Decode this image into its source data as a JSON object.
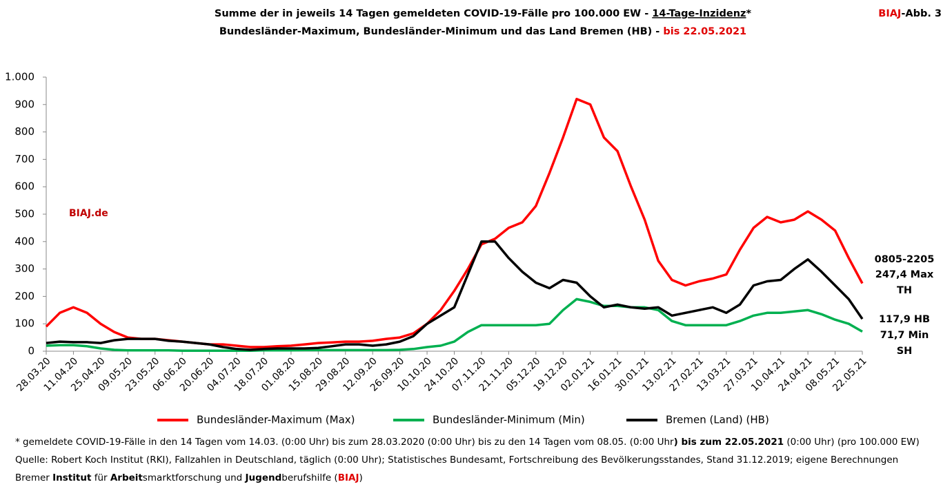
{
  "chart_data": {
    "type": "line",
    "title": [
      "Summe der in jeweils 14 Tagen gemeldeten COVID-19-Fälle pro 100.000 EW - ",
      "14-Tage-Inzidenz",
      "*"
    ],
    "subtitle": [
      "Bundesländer-Maximum, Bundesländer-Minimum und das Land Bremen (HB) - ",
      "bis 22.05.2021"
    ],
    "badge": [
      "BIAJ",
      "-Abb. 3"
    ],
    "watermark": "BIAJ.de",
    "annotations": [
      "0805-2205",
      "247,4 Max",
      "TH",
      "117,9 HB",
      "71,7 Min",
      "SH"
    ],
    "categories": [
      "28.03.20",
      null,
      "11.04.20",
      null,
      "25.04.20",
      null,
      "09.05.20",
      null,
      "23.05.20",
      null,
      "06.06.20",
      null,
      "20.06.20",
      null,
      "04.07.20",
      null,
      "18.07.20",
      null,
      "01.08.20",
      null,
      "15.08.20",
      null,
      "29.08.20",
      null,
      "12.09.20",
      null,
      "26.09.20",
      null,
      "10.10.20",
      null,
      "24.10.20",
      null,
      "07.11.20",
      null,
      "21.11.20",
      null,
      "05.12.20",
      null,
      "19.12.20",
      null,
      "02.01.21",
      null,
      "16.01.21",
      null,
      "30.01.21",
      null,
      "13.02.21",
      null,
      "27.02.21",
      null,
      "13.03.21",
      null,
      "27.03.21",
      null,
      "10.04.21",
      null,
      "24.04.21",
      null,
      "08.05.21",
      null,
      "22.05.21"
    ],
    "series": [
      {
        "name": "Bundesländer-Maximum (Max)",
        "color": "#ff0000",
        "values": [
          90,
          140,
          160,
          140,
          100,
          70,
          50,
          45,
          45,
          40,
          35,
          30,
          25,
          25,
          20,
          15,
          15,
          18,
          20,
          25,
          30,
          32,
          35,
          35,
          38,
          45,
          50,
          65,
          100,
          150,
          220,
          300,
          390,
          410,
          450,
          470,
          530,
          650,
          780,
          920,
          900,
          780,
          730,
          600,
          480,
          330,
          260,
          240,
          255,
          265,
          280,
          370,
          450,
          490,
          470,
          480,
          510,
          480,
          440,
          340,
          247.4
        ]
      },
      {
        "name": "Bundesländer-Minimum (Min)",
        "color": "#00b050",
        "values": [
          20,
          22,
          22,
          18,
          10,
          5,
          3,
          3,
          3,
          3,
          2,
          2,
          2,
          2,
          2,
          2,
          3,
          3,
          3,
          4,
          4,
          4,
          4,
          4,
          4,
          4,
          5,
          8,
          15,
          20,
          35,
          70,
          95,
          95,
          95,
          95,
          95,
          100,
          150,
          190,
          180,
          165,
          165,
          160,
          160,
          150,
          110,
          95,
          95,
          95,
          95,
          110,
          130,
          140,
          140,
          145,
          150,
          135,
          115,
          100,
          71.7
        ]
      },
      {
        "name": "Bremen (Land) (HB)",
        "color": "#000000",
        "values": [
          30,
          35,
          33,
          33,
          30,
          40,
          45,
          45,
          45,
          38,
          35,
          30,
          25,
          15,
          8,
          5,
          8,
          10,
          10,
          10,
          12,
          18,
          25,
          25,
          20,
          25,
          35,
          55,
          100,
          130,
          160,
          280,
          400,
          400,
          340,
          290,
          250,
          230,
          260,
          250,
          200,
          160,
          170,
          160,
          155,
          160,
          130,
          140,
          150,
          160,
          140,
          170,
          240,
          255,
          260,
          300,
          335,
          290,
          240,
          190,
          117.9
        ]
      }
    ],
    "ylim": [
      0,
      1000
    ],
    "yticks": [
      0,
      100,
      200,
      300,
      400,
      500,
      600,
      700,
      800,
      900,
      {
        "value": 1000,
        "label": "1.000"
      }
    ],
    "grid": false
  },
  "footnotes": [
    [
      "* gemeldete COVID-19-Fälle in den 14 Tagen vom 14.03. (0:00 Uhr) bis zum 28.03.2020 (0:00 Uhr) bis zu den 14 Tagen vom 08.05. (0:00 Uhr",
      ") bis zum 22.05.2021",
      " (0:00 Uhr) (pro 100.000 EW)"
    ],
    [
      "Quelle: Robert Koch Institut (RKI), Fallzahlen in Deutschland, täglich (0:00 Uhr); Statistisches Bundesamt, Fortschreibung des Bevölkerungsstandes, Stand 31.12.2019; eigene Berechnungen"
    ],
    [
      "Bremer ",
      "Institut",
      " für ",
      "Arbeit",
      "smarktforschung und ",
      "Jugend",
      "berufshilfe (",
      "BIAJ",
      ")"
    ]
  ]
}
